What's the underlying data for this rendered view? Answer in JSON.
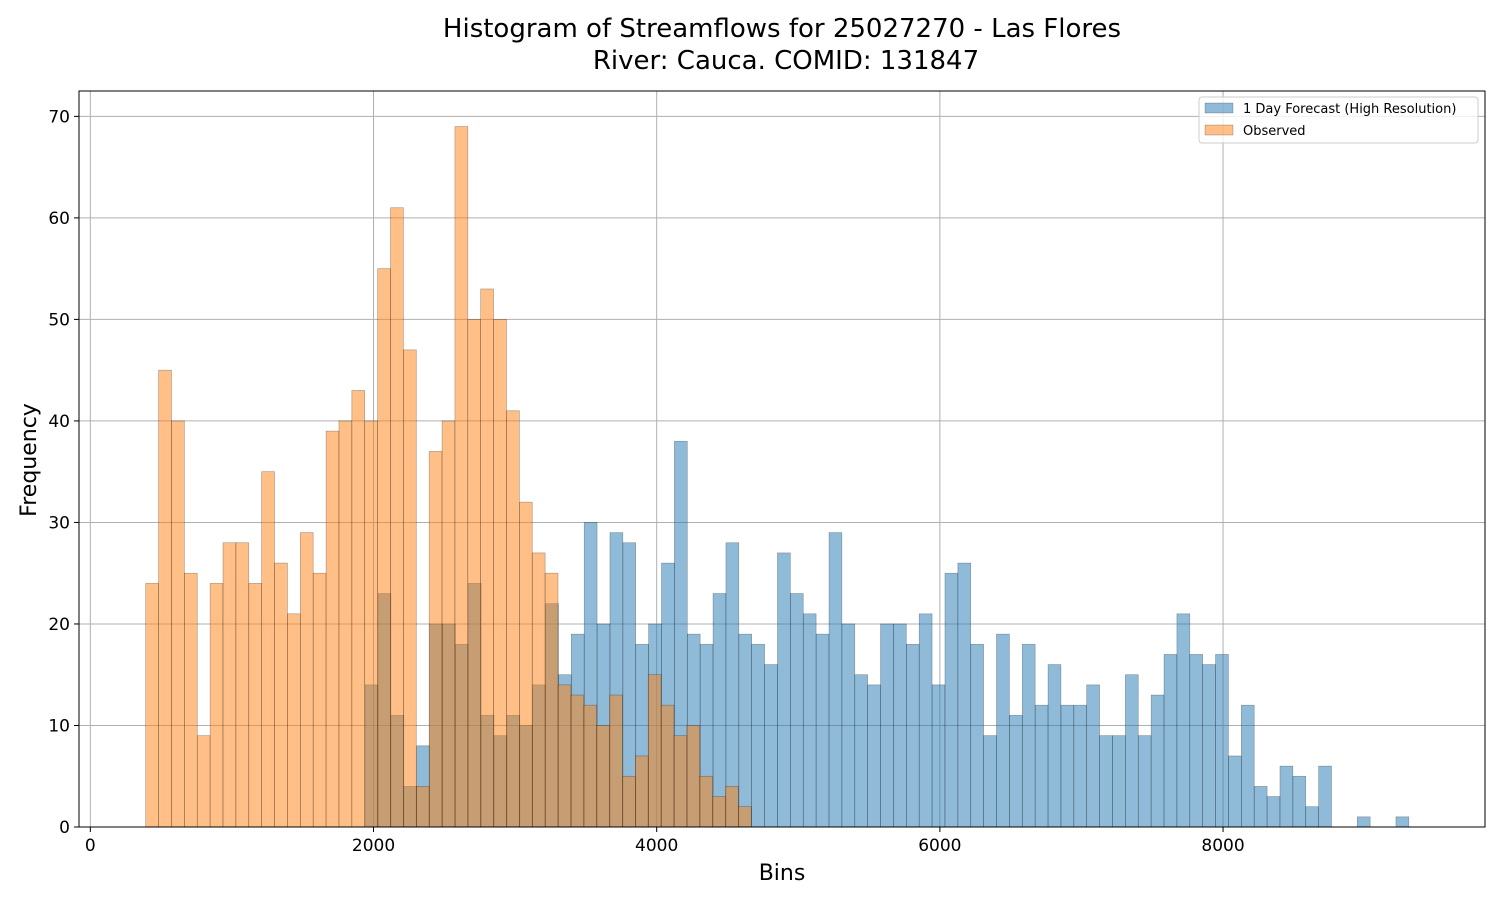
{
  "chart_data": {
    "type": "bar",
    "title_line1": "Histogram of Streamflows for 25027270 - Las Flores",
    "title_line2": "River: Cauca. COMID: 131847",
    "xlabel": "Bins",
    "ylabel": "Frequency",
    "xlim": [
      -80,
      9850
    ],
    "ylim": [
      0,
      72.5
    ],
    "xticks": [
      0,
      2000,
      4000,
      6000,
      8000
    ],
    "yticks": [
      0,
      10,
      20,
      30,
      40,
      50,
      60,
      70
    ],
    "grid": true,
    "legend_position": "top-right",
    "bin_width": 91,
    "series": [
      {
        "name": "1 Day Forecast (High Resolution)",
        "color": "#1f77b4",
        "x_start": 1941,
        "values": [
          14,
          23,
          11,
          4,
          8,
          20,
          20,
          18,
          24,
          11,
          9,
          11,
          10,
          14,
          22,
          15,
          19,
          30,
          20,
          29,
          28,
          18,
          20,
          26,
          38,
          19,
          18,
          23,
          28,
          19,
          18,
          16,
          27,
          23,
          21,
          19,
          29,
          20,
          15,
          14,
          20,
          20,
          18,
          21,
          14,
          25,
          26,
          18,
          9,
          19,
          11,
          18,
          12,
          16,
          12,
          12,
          14,
          9,
          9,
          15,
          9,
          13,
          17,
          21,
          17,
          16,
          17,
          7,
          12,
          4,
          3,
          6,
          5,
          2,
          6,
          0,
          0,
          1,
          0,
          0,
          1
        ]
      },
      {
        "name": "Observed",
        "color": "#ff7f0e",
        "x_start": 391,
        "values": [
          24,
          45,
          40,
          25,
          9,
          24,
          28,
          28,
          24,
          35,
          26,
          21,
          29,
          25,
          39,
          40,
          43,
          40,
          55,
          61,
          47,
          4,
          37,
          40,
          69,
          50,
          53,
          50,
          41,
          32,
          27,
          25,
          14,
          13,
          12,
          10,
          13,
          5,
          7,
          15,
          12,
          9,
          10,
          5,
          3,
          4,
          2
        ]
      }
    ]
  }
}
